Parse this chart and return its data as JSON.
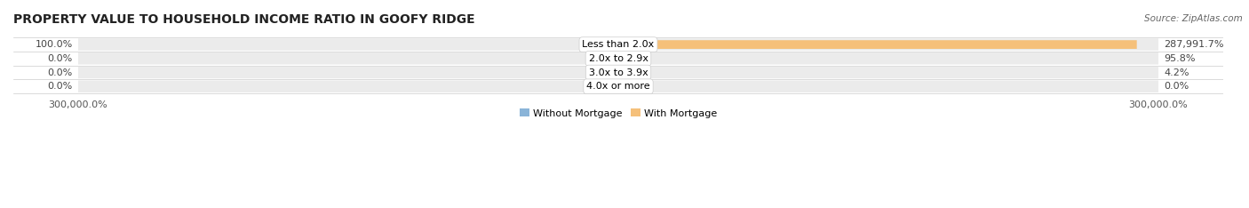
{
  "title": "PROPERTY VALUE TO HOUSEHOLD INCOME RATIO IN GOOFY RIDGE",
  "source": "Source: ZipAtlas.com",
  "categories": [
    "Less than 2.0x",
    "2.0x to 2.9x",
    "3.0x to 3.9x",
    "4.0x or more"
  ],
  "without_mortgage": [
    100.0,
    0.0,
    0.0,
    0.0
  ],
  "with_mortgage": [
    287991.7,
    95.8,
    4.2,
    0.0
  ],
  "without_mortgage_color": "#8ab4d8",
  "with_mortgage_color": "#f5c07a",
  "row_bg_color": "#ebebeb",
  "max_value": 300000.0,
  "left_labels": [
    "100.0%",
    "0.0%",
    "0.0%",
    "0.0%"
  ],
  "right_labels": [
    "287,991.7%",
    "95.8%",
    "4.2%",
    "0.0%"
  ],
  "xlabel_left": "300,000.0%",
  "xlabel_right": "300,000.0%",
  "legend_labels": [
    "Without Mortgage",
    "With Mortgage"
  ],
  "title_fontsize": 10,
  "label_fontsize": 8,
  "tick_fontsize": 8,
  "source_fontsize": 7.5
}
